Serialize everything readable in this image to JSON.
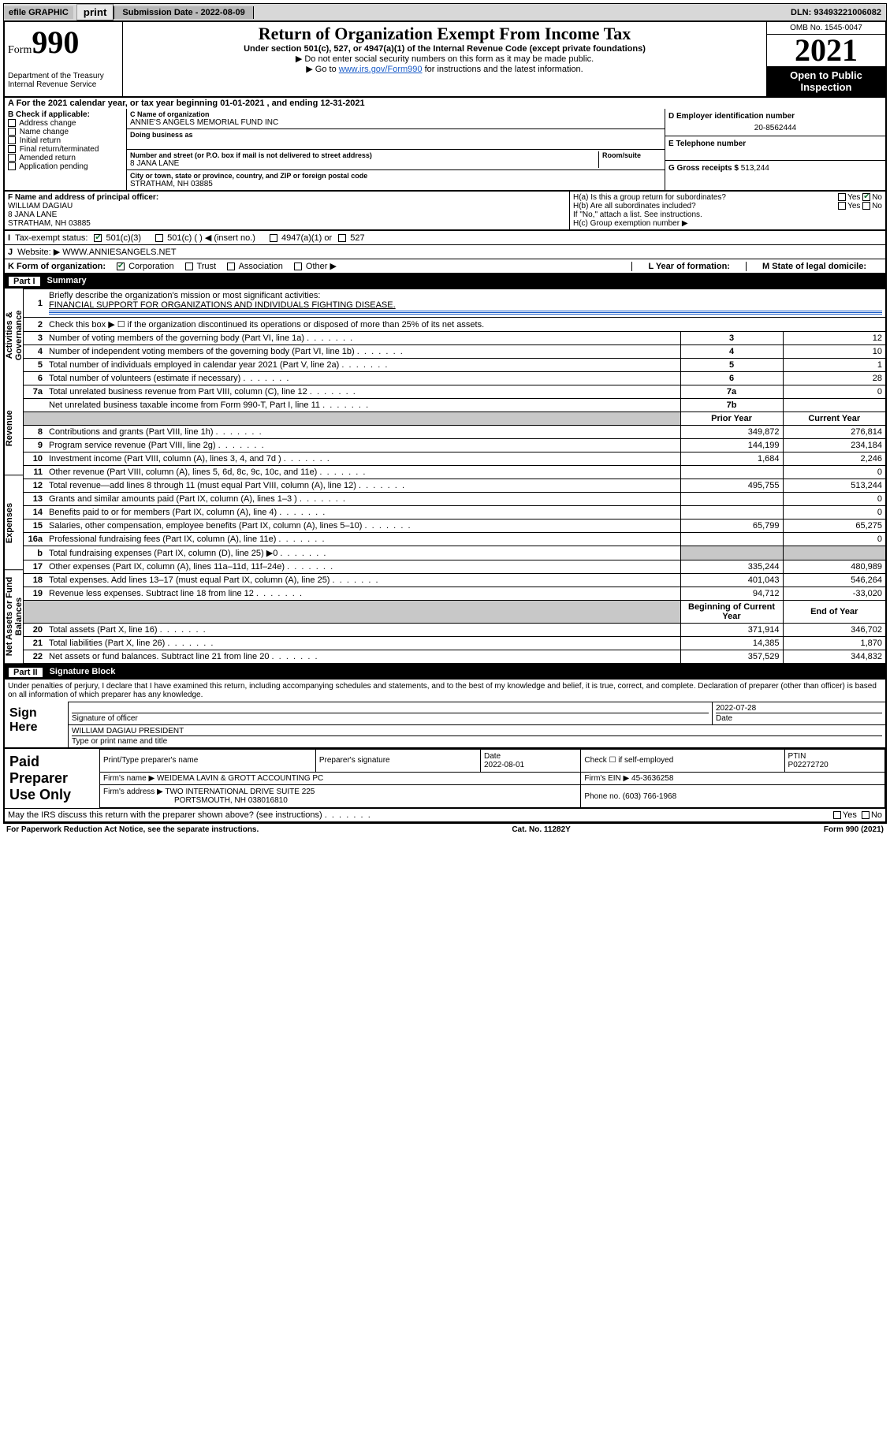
{
  "topbar": {
    "efile": "efile GRAPHIC",
    "print": "print",
    "submission": "Submission Date - 2022-08-09",
    "dln": "DLN: 93493221006082"
  },
  "header": {
    "form_prefix": "Form",
    "form_number": "990",
    "dept": "Department of the Treasury\nInternal Revenue Service",
    "title": "Return of Organization Exempt From Income Tax",
    "sub": "Under section 501(c), 527, or 4947(a)(1) of the Internal Revenue Code (except private foundations)",
    "note1": "▶ Do not enter social security numbers on this form as it may be made public.",
    "note2_pre": "▶ Go to ",
    "note2_link": "www.irs.gov/Form990",
    "note2_post": " for instructions and the latest information.",
    "omb": "OMB No. 1545-0047",
    "year": "2021",
    "open": "Open to Public Inspection"
  },
  "period": "A For the 2021 calendar year, or tax year beginning 01-01-2021   , and ending 12-31-2021",
  "boxB": {
    "label": "B Check if applicable:",
    "items": [
      "Address change",
      "Name change",
      "Initial return",
      "Final return/terminated",
      "Amended return",
      "Application pending"
    ]
  },
  "boxC": {
    "name_lbl": "C Name of organization",
    "name": "ANNIE'S ANGELS MEMORIAL FUND INC",
    "dba_lbl": "Doing business as",
    "addr_lbl": "Number and street (or P.O. box if mail is not delivered to street address)",
    "room_lbl": "Room/suite",
    "addr": "8 JANA LANE",
    "city_lbl": "City or town, state or province, country, and ZIP or foreign postal code",
    "city": "STRATHAM, NH  03885"
  },
  "boxD": {
    "lbl": "D Employer identification number",
    "val": "20-8562444"
  },
  "boxE": {
    "lbl": "E Telephone number",
    "val": ""
  },
  "boxG": {
    "lbl": "G Gross receipts $",
    "val": "513,244"
  },
  "boxF": {
    "lbl": "F  Name and address of principal officer:",
    "name": "WILLIAM DAGIAU",
    "addr1": "8 JANA LANE",
    "addr2": "STRATHAM, NH  03885"
  },
  "boxH": {
    "a": "H(a)  Is this a group return for subordinates?",
    "b": "H(b)  Are all subordinates included?",
    "note": "If \"No,\" attach a list. See instructions.",
    "c": "H(c)  Group exemption number ▶"
  },
  "boxI": {
    "lbl": "Tax-exempt status:",
    "opts": [
      "501(c)(3)",
      "501(c) (   ) ◀ (insert no.)",
      "4947(a)(1) or",
      "527"
    ]
  },
  "boxJ": {
    "lbl": "Website: ▶",
    "val": "WWW.ANNIESANGELS.NET"
  },
  "boxK": {
    "lbl": "K Form of organization:",
    "opts": [
      "Corporation",
      "Trust",
      "Association",
      "Other ▶"
    ]
  },
  "boxL": {
    "lbl": "L Year of formation:",
    "val": ""
  },
  "boxM": {
    "lbl": "M State of legal domicile:",
    "val": ""
  },
  "partI": {
    "label": "Part I",
    "title": "Summary"
  },
  "summary": {
    "tabs": [
      "Activities & Governance",
      "Revenue",
      "Expenses",
      "Net Assets or Fund Balances"
    ],
    "line1_lbl": "Briefly describe the organization's mission or most significant activities:",
    "line1_val": "FINANCIAL SUPPORT FOR ORGANIZATIONS AND INDIVIDUALS FIGHTING DISEASE.",
    "line2": "Check this box ▶ ☐  if the organization discontinued its operations or disposed of more than 25% of its net assets.",
    "rows_top": [
      {
        "n": "3",
        "t": "Number of voting members of the governing body (Part VI, line 1a)",
        "box": "3",
        "v": "12"
      },
      {
        "n": "4",
        "t": "Number of independent voting members of the governing body (Part VI, line 1b)",
        "box": "4",
        "v": "10"
      },
      {
        "n": "5",
        "t": "Total number of individuals employed in calendar year 2021 (Part V, line 2a)",
        "box": "5",
        "v": "1"
      },
      {
        "n": "6",
        "t": "Total number of volunteers (estimate if necessary)",
        "box": "6",
        "v": "28"
      },
      {
        "n": "7a",
        "t": "Total unrelated business revenue from Part VIII, column (C), line 12",
        "box": "7a",
        "v": "0"
      },
      {
        "n": "",
        "t": "Net unrelated business taxable income from Form 990-T, Part I, line 11",
        "box": "7b",
        "v": ""
      }
    ],
    "col_hdr_prior": "Prior Year",
    "col_hdr_curr": "Current Year",
    "rows_rev": [
      {
        "n": "8",
        "t": "Contributions and grants (Part VIII, line 1h)",
        "p": "349,872",
        "c": "276,814"
      },
      {
        "n": "9",
        "t": "Program service revenue (Part VIII, line 2g)",
        "p": "144,199",
        "c": "234,184"
      },
      {
        "n": "10",
        "t": "Investment income (Part VIII, column (A), lines 3, 4, and 7d )",
        "p": "1,684",
        "c": "2,246"
      },
      {
        "n": "11",
        "t": "Other revenue (Part VIII, column (A), lines 5, 6d, 8c, 9c, 10c, and 11e)",
        "p": "",
        "c": "0"
      },
      {
        "n": "12",
        "t": "Total revenue—add lines 8 through 11 (must equal Part VIII, column (A), line 12)",
        "p": "495,755",
        "c": "513,244"
      }
    ],
    "rows_exp": [
      {
        "n": "13",
        "t": "Grants and similar amounts paid (Part IX, column (A), lines 1–3 )",
        "p": "",
        "c": "0"
      },
      {
        "n": "14",
        "t": "Benefits paid to or for members (Part IX, column (A), line 4)",
        "p": "",
        "c": "0"
      },
      {
        "n": "15",
        "t": "Salaries, other compensation, employee benefits (Part IX, column (A), lines 5–10)",
        "p": "65,799",
        "c": "65,275"
      },
      {
        "n": "16a",
        "t": "Professional fundraising fees (Part IX, column (A), line 11e)",
        "p": "",
        "c": "0"
      },
      {
        "n": "b",
        "t": "Total fundraising expenses (Part IX, column (D), line 25) ▶0",
        "p": "GREY",
        "c": "GREY"
      },
      {
        "n": "17",
        "t": "Other expenses (Part IX, column (A), lines 11a–11d, 11f–24e)",
        "p": "335,244",
        "c": "480,989"
      },
      {
        "n": "18",
        "t": "Total expenses. Add lines 13–17 (must equal Part IX, column (A), line 25)",
        "p": "401,043",
        "c": "546,264"
      },
      {
        "n": "19",
        "t": "Revenue less expenses. Subtract line 18 from line 12",
        "p": "94,712",
        "c": "-33,020"
      }
    ],
    "col_hdr_beg": "Beginning of Current Year",
    "col_hdr_end": "End of Year",
    "rows_net": [
      {
        "n": "20",
        "t": "Total assets (Part X, line 16)",
        "p": "371,914",
        "c": "346,702"
      },
      {
        "n": "21",
        "t": "Total liabilities (Part X, line 26)",
        "p": "14,385",
        "c": "1,870"
      },
      {
        "n": "22",
        "t": "Net assets or fund balances. Subtract line 21 from line 20",
        "p": "357,529",
        "c": "344,832"
      }
    ]
  },
  "partII": {
    "label": "Part II",
    "title": "Signature Block"
  },
  "sig": {
    "para": "Under penalties of perjury, I declare that I have examined this return, including accompanying schedules and statements, and to the best of my knowledge and belief, it is true, correct, and complete. Declaration of preparer (other than officer) is based on all information of which preparer has any knowledge.",
    "here": "Sign Here",
    "sig_lbl": "Signature of officer",
    "date_lbl": "Date",
    "date": "2022-07-28",
    "name": "WILLIAM DAGIAU  PRESIDENT",
    "name_lbl": "Type or print name and title"
  },
  "prep": {
    "lbl": "Paid Preparer Use Only",
    "h": [
      "Print/Type preparer's name",
      "Preparer's signature",
      "Date",
      "Check ☐ if self-employed",
      "PTIN"
    ],
    "date": "2022-08-01",
    "ptin": "P02272720",
    "firm_lbl": "Firm's name    ▶",
    "firm": "WEIDEMA LAVIN & GROTT ACCOUNTING PC",
    "ein_lbl": "Firm's EIN ▶",
    "ein": "45-3636258",
    "addr_lbl": "Firm's address ▶",
    "addr1": "TWO INTERNATIONAL DRIVE SUITE 225",
    "addr2": "PORTSMOUTH, NH  038016810",
    "phone_lbl": "Phone no.",
    "phone": "(603) 766-1968",
    "discuss": "May the IRS discuss this return with the preparer shown above? (see instructions)"
  },
  "footer": {
    "left": "For Paperwork Reduction Act Notice, see the separate instructions.",
    "mid": "Cat. No. 11282Y",
    "right": "Form 990 (2021)"
  }
}
